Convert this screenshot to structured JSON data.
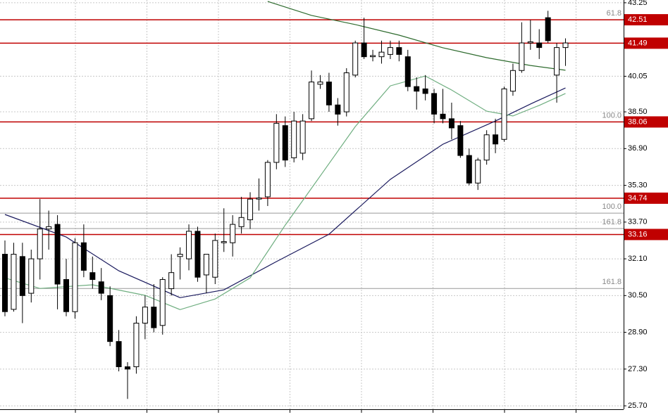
{
  "chart_data": {
    "type": "candlestick",
    "ylim": [
      25.55,
      43.37
    ],
    "yticks": [
      43.25,
      40.05,
      {
        "value": 38.5,
        "label": "38.50"
      },
      {
        "value": 36.9,
        "label": "36.90"
      },
      {
        "value": 35.3,
        "label": "35.30"
      },
      {
        "value": 33.7,
        "label": "33.70"
      },
      {
        "value": 32.1,
        "label": "32.10"
      },
      {
        "value": 30.5,
        "label": "30.50"
      },
      {
        "value": 28.9,
        "label": "28.90"
      },
      {
        "value": 27.3,
        "label": "27.30"
      },
      {
        "value": 25.7,
        "label": "25.70"
      }
    ],
    "grid": true,
    "candles": [
      [
        32.3,
        32.9,
        29.6,
        29.8
      ],
      [
        29.9,
        32.8,
        29.8,
        32.3
      ],
      [
        32.2,
        32.8,
        29.3,
        30.5
      ],
      [
        30.6,
        32.5,
        30.2,
        32.1
      ],
      [
        32.1,
        34.7,
        31.2,
        33.4
      ],
      [
        33.4,
        34.2,
        32.5,
        33.5
      ],
      [
        33.6,
        34.0,
        29.9,
        31.0
      ],
      [
        31.2,
        32.1,
        29.6,
        29.8
      ],
      [
        29.8,
        33.0,
        29.5,
        32.8
      ],
      [
        32.8,
        33.6,
        31.3,
        31.6
      ],
      [
        31.5,
        32.2,
        30.8,
        31.2
      ],
      [
        31.1,
        31.7,
        30.3,
        30.6
      ],
      [
        30.5,
        30.9,
        28.3,
        28.5
      ],
      [
        28.5,
        29.0,
        27.2,
        27.4
      ],
      [
        27.4,
        27.6,
        26.0,
        27.3
      ],
      [
        27.4,
        29.6,
        27.1,
        29.3
      ],
      [
        29.3,
        30.5,
        28.6,
        30.0
      ],
      [
        30.0,
        31.0,
        28.9,
        29.1
      ],
      [
        29.2,
        31.3,
        28.8,
        31.2
      ],
      [
        30.8,
        32.3,
        30.5,
        31.5
      ],
      [
        32.2,
        32.6,
        31.2,
        32.3
      ],
      [
        32.1,
        33.6,
        31.6,
        33.3
      ],
      [
        33.3,
        33.5,
        31.1,
        31.3
      ],
      [
        31.4,
        32.3,
        30.6,
        32.3
      ],
      [
        31.3,
        33.2,
        31.0,
        32.9
      ],
      [
        32.8,
        34.3,
        32.4,
        32.85
      ],
      [
        32.8,
        34.0,
        32.2,
        33.6
      ],
      [
        33.5,
        34.8,
        33.2,
        33.9
      ],
      [
        33.8,
        35.0,
        33.4,
        34.7
      ],
      [
        34.7,
        35.6,
        34.2,
        34.75
      ],
      [
        34.8,
        36.4,
        34.4,
        36.3
      ],
      [
        36.3,
        38.4,
        36.0,
        38.0
      ],
      [
        37.9,
        38.3,
        36.1,
        36.4
      ],
      [
        36.5,
        38.5,
        36.3,
        38.1
      ],
      [
        36.7,
        38.4,
        36.4,
        38.1
      ],
      [
        38.2,
        40.3,
        38.1,
        39.8
      ],
      [
        39.7,
        40.1,
        39.5,
        39.8
      ],
      [
        39.8,
        40.2,
        38.5,
        38.8
      ],
      [
        38.8,
        39.1,
        37.9,
        38.4
      ],
      [
        38.5,
        40.4,
        38.3,
        40.2
      ],
      [
        40.1,
        41.6,
        40.0,
        41.5
      ],
      [
        41.5,
        42.6,
        40.8,
        40.9
      ],
      [
        40.9,
        41.2,
        40.7,
        40.95
      ],
      [
        40.9,
        41.6,
        40.6,
        41.1
      ],
      [
        41.0,
        41.6,
        40.8,
        41.3
      ],
      [
        41.3,
        41.6,
        40.7,
        41.0
      ],
      [
        40.9,
        41.2,
        39.4,
        39.6
      ],
      [
        39.6,
        40.0,
        38.6,
        39.4
      ],
      [
        39.5,
        40.1,
        39.0,
        39.3
      ],
      [
        39.3,
        39.5,
        38.0,
        38.4
      ],
      [
        38.4,
        39.5,
        38.0,
        38.2
      ],
      [
        38.2,
        38.9,
        37.3,
        37.8
      ],
      [
        37.9,
        38.1,
        36.5,
        36.6
      ],
      [
        36.6,
        36.9,
        35.3,
        35.4
      ],
      [
        35.4,
        36.5,
        35.1,
        36.4
      ],
      [
        36.4,
        37.7,
        36.2,
        37.5
      ],
      [
        37.5,
        38.2,
        36.7,
        37.1
      ],
      [
        37.3,
        39.6,
        37.2,
        39.5
      ],
      [
        39.4,
        40.6,
        39.2,
        40.3
      ],
      [
        40.3,
        42.4,
        40.2,
        41.5
      ],
      [
        41.5,
        42.5,
        41.2,
        41.55
      ],
      [
        41.5,
        42.1,
        40.8,
        41.3
      ],
      [
        42.6,
        42.9,
        41.5,
        41.6
      ],
      [
        40.1,
        41.5,
        38.9,
        41.3
      ],
      [
        41.3,
        41.7,
        40.5,
        41.5
      ]
    ],
    "series": [
      {
        "color": "#2e6b2e",
        "x": [
          30,
          35,
          40,
          45,
          50,
          55,
          60,
          64
        ],
        "values": [
          43.31,
          42.7,
          42.3,
          41.84,
          41.29,
          40.86,
          40.52,
          40.31
        ]
      },
      {
        "color": "#1a1a5e",
        "x": [
          0,
          7,
          13,
          20,
          25,
          31,
          37,
          44,
          50,
          56,
          60,
          64
        ],
        "values": [
          34.03,
          33.05,
          31.58,
          30.41,
          30.75,
          31.98,
          33.17,
          35.56,
          37.09,
          38.1,
          38.84,
          39.54
        ]
      },
      {
        "color": "#6fae80",
        "x": [
          0,
          4,
          10,
          16,
          20,
          24,
          28,
          32,
          36,
          40,
          44,
          48,
          51,
          55,
          58,
          61,
          64
        ],
        "values": [
          31.27,
          30.81,
          30.97,
          30.51,
          29.89,
          30.35,
          31.27,
          33.57,
          35.71,
          37.86,
          39.63,
          40.06,
          39.45,
          38.53,
          38.32,
          38.78,
          39.3
        ]
      }
    ],
    "levels": [
      {
        "value": 42.51,
        "label": "42.51"
      },
      {
        "value": 41.49,
        "label": "41.49"
      },
      {
        "value": 38.06,
        "label": "38.06"
      },
      {
        "value": 34.74,
        "label": "34.74"
      },
      {
        "value": 33.16,
        "label": "33.16"
      }
    ],
    "level_color": "#c00000",
    "fibs": [
      {
        "value": 42.51,
        "label": "61.8"
      },
      {
        "value": 38.06,
        "label": "100.0"
      },
      {
        "value": 34.09,
        "label": "100.0"
      },
      {
        "value": 33.42,
        "label": "161.8"
      },
      {
        "value": 30.81,
        "label": "161.8"
      }
    ]
  }
}
